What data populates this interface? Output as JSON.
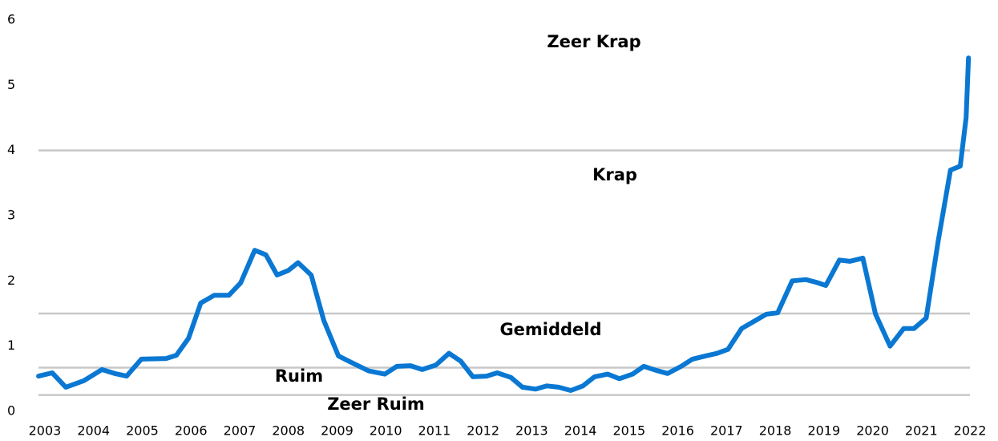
{
  "chart_data": {
    "type": "line",
    "x": [
      2002.87,
      2003.15,
      2003.43,
      2003.8,
      2004.17,
      2004.43,
      2004.68,
      2004.98,
      2005.49,
      2005.7,
      2005.95,
      2006.2,
      2006.48,
      2006.78,
      2007.02,
      2007.31,
      2007.54,
      2007.77,
      2008.0,
      2008.2,
      2008.47,
      2008.73,
      2009.03,
      2009.32,
      2009.65,
      2009.98,
      2010.23,
      2010.51,
      2010.75,
      2011.03,
      2011.3,
      2011.54,
      2011.79,
      2012.07,
      2012.29,
      2012.57,
      2012.81,
      2013.08,
      2013.31,
      2013.55,
      2013.8,
      2014.05,
      2014.29,
      2014.56,
      2014.8,
      2015.07,
      2015.3,
      2015.55,
      2015.79,
      2016.07,
      2016.3,
      2016.57,
      2016.81,
      2017.03,
      2017.31,
      2017.59,
      2017.82,
      2018.05,
      2018.35,
      2018.63,
      2018.84,
      2019.04,
      2019.32,
      2019.53,
      2019.8,
      2020.06,
      2020.36,
      2020.64,
      2020.85,
      2021.1,
      2021.35,
      2021.6,
      2021.8,
      2021.92,
      2021.97
    ],
    "series": [
      {
        "color": "#0a78d2",
        "values": [
          0.54,
          0.59,
          0.37,
          0.47,
          0.64,
          0.58,
          0.54,
          0.8,
          0.81,
          0.86,
          1.12,
          1.66,
          1.78,
          1.78,
          1.97,
          2.47,
          2.4,
          2.09,
          2.16,
          2.28,
          2.09,
          1.39,
          0.85,
          0.74,
          0.62,
          0.57,
          0.69,
          0.7,
          0.64,
          0.71,
          0.89,
          0.77,
          0.53,
          0.54,
          0.59,
          0.52,
          0.37,
          0.34,
          0.39,
          0.37,
          0.32,
          0.39,
          0.53,
          0.57,
          0.5,
          0.57,
          0.69,
          0.63,
          0.58,
          0.69,
          0.8,
          0.85,
          0.89,
          0.95,
          1.27,
          1.39,
          1.49,
          1.51,
          2.0,
          2.02,
          1.98,
          1.93,
          2.32,
          2.3,
          2.35,
          1.49,
          1.0,
          1.27,
          1.27,
          1.43,
          2.62,
          3.7,
          3.76,
          4.5,
          5.42
        ]
      }
    ],
    "xlim": [
      2002.8,
      2022.1
    ],
    "xticks": [
      2003,
      2004,
      2005,
      2006,
      2007,
      2008,
      2009,
      2010,
      2011,
      2012,
      2013,
      2014,
      2015,
      2016,
      2017,
      2018,
      2019,
      2020,
      2021,
      2022
    ],
    "ylim": [
      0,
      6
    ],
    "yticks": [
      0,
      1,
      2,
      3,
      4,
      5,
      6
    ],
    "thresholds": [
      4,
      1.5,
      0.67,
      0.25
    ],
    "threshold_color": "#c8c8c8",
    "annotations": [
      "Zeer Krap",
      "Krap",
      "Gemiddeld",
      "Ruim",
      "Zeer Ruim"
    ]
  }
}
